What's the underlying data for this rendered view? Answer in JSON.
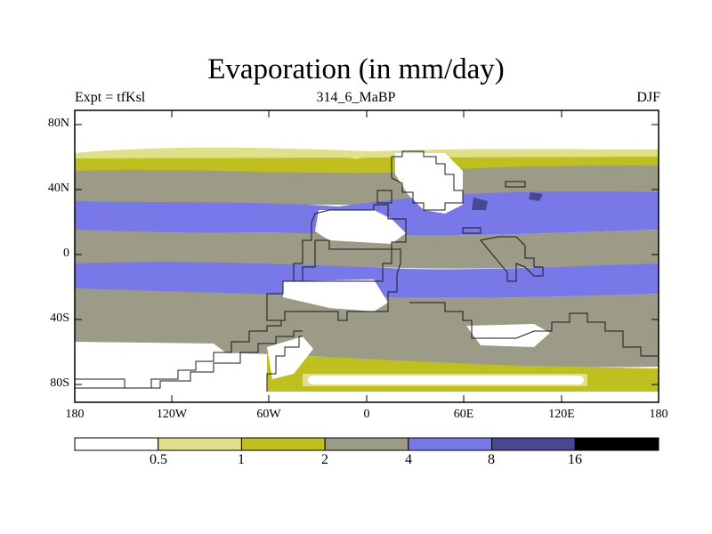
{
  "title": "Evaporation (in mm/day)",
  "subtitle_left": "Expt = tfKsl",
  "subtitle_center": "314_6_MaBP",
  "subtitle_right": "DJF",
  "lat_labels": [
    "80N",
    "40N",
    "0",
    "40S",
    "80S"
  ],
  "lon_labels": [
    "180",
    "120W",
    "60W",
    "0",
    "60E",
    "120E",
    "180"
  ],
  "colorbar": {
    "levels": [
      "0.5",
      "1",
      "2",
      "4",
      "8",
      "16"
    ],
    "colors": [
      "#ffffff",
      "#e0e08a",
      "#bfbf1f",
      "#9b9b88",
      "#7878e8",
      "#474793",
      "#000000"
    ]
  },
  "colors": {
    "frame": "#000000",
    "coast": "#1a1a1a",
    "bg_white": "#ffffff"
  }
}
